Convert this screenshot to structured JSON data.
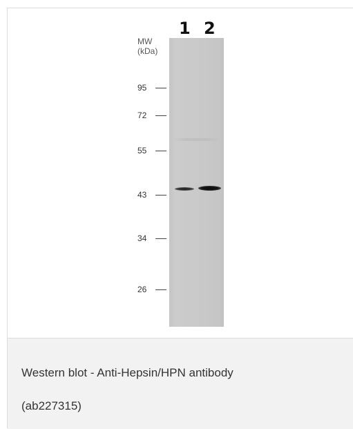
{
  "figure": {
    "lanes": [
      {
        "label": "1"
      },
      {
        "label": "2"
      }
    ],
    "mw_title_line1": "MW",
    "mw_title_line2": "(kDa)",
    "markers": [
      {
        "value": "95"
      },
      {
        "value": "72"
      },
      {
        "value": "55"
      },
      {
        "value": "43"
      },
      {
        "value": "34"
      },
      {
        "value": "26"
      }
    ]
  },
  "caption": {
    "line1": "Western blot - Anti-Hepsin/HPN antibody",
    "line2": "(ab227315)"
  },
  "colors": {
    "caption_background": "#f2f2f2",
    "blot_background": "#c8c8c8",
    "band": "#111111"
  }
}
